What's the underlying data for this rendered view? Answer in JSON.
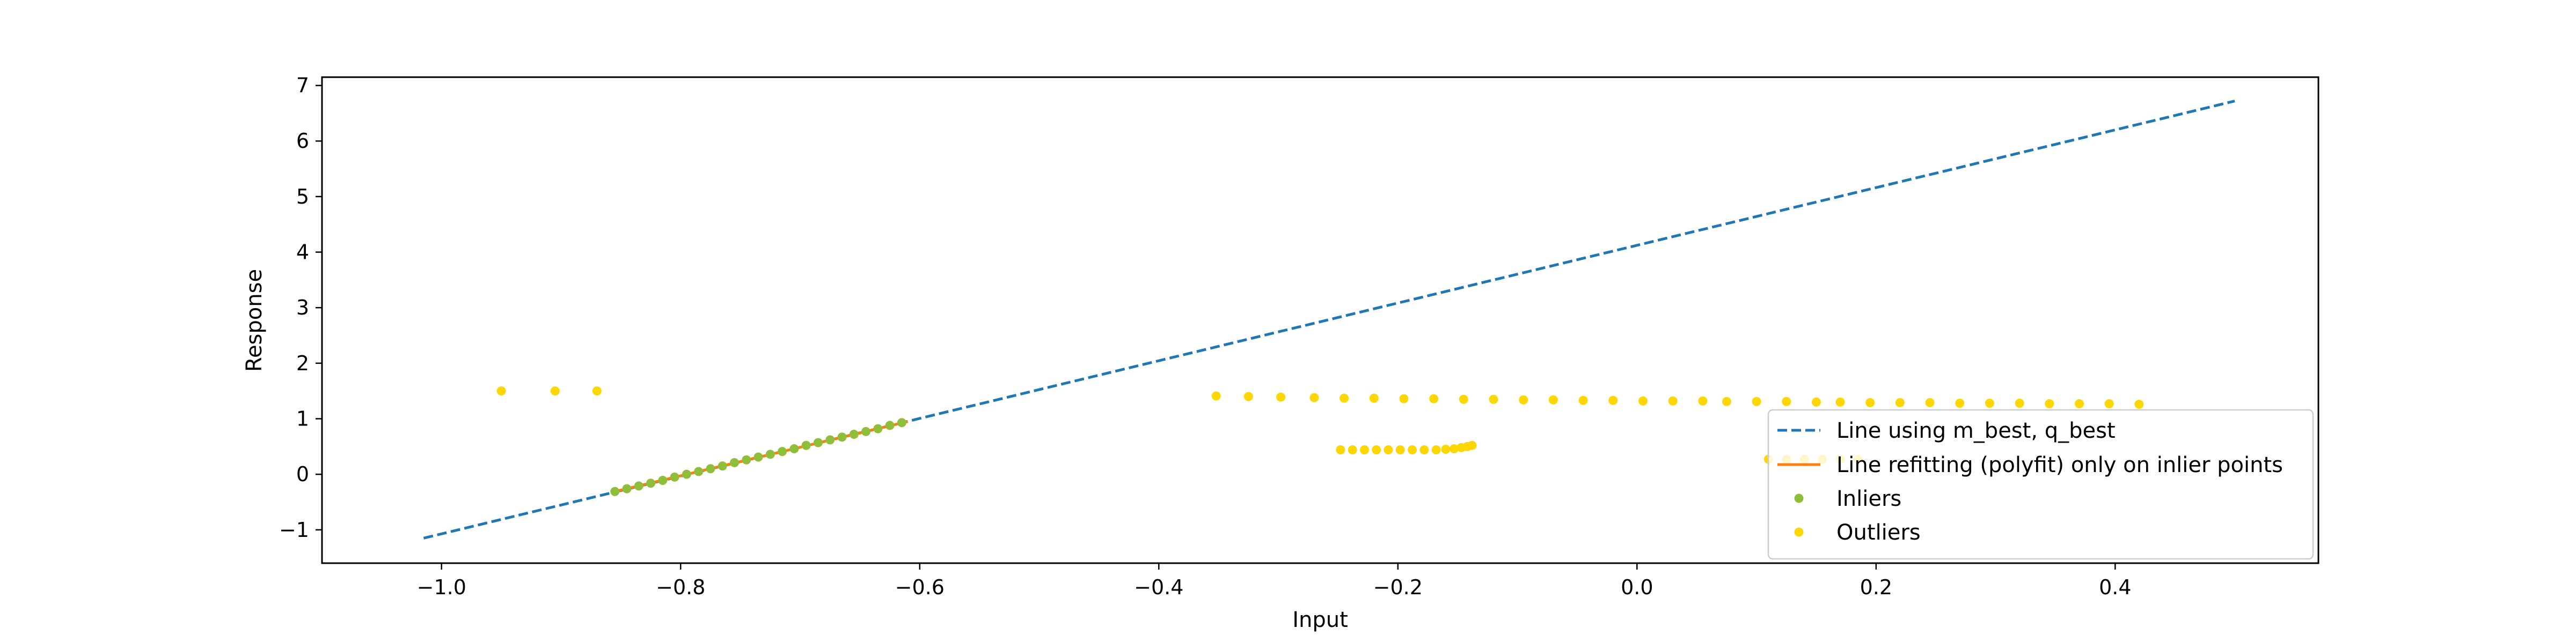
{
  "chart_data": {
    "type": "scatter",
    "xlabel": "Input",
    "ylabel": "Response",
    "xlim": [
      -1.1,
      0.57
    ],
    "ylim": [
      -1.6,
      7.15
    ],
    "xticks": [
      -1.0,
      -0.8,
      -0.6,
      -0.4,
      -0.2,
      0.0,
      0.2,
      0.4
    ],
    "xtick_labels": [
      "−1.0",
      "−0.8",
      "−0.6",
      "−0.4",
      "−0.2",
      "0.0",
      "0.2",
      "0.4"
    ],
    "yticks": [
      -1,
      0,
      1,
      2,
      3,
      4,
      5,
      6,
      7
    ],
    "ytick_labels": [
      "−1",
      "0",
      "1",
      "2",
      "3",
      "4",
      "5",
      "6",
      "7"
    ],
    "grid": false,
    "legend_position": "lower-right",
    "series": [
      {
        "name": "Line using m_best, q_best",
        "kind": "dashed-line",
        "color": "#1f77b4",
        "x": [
          -1.015,
          0.5
        ],
        "y": [
          -1.15,
          6.72
        ]
      },
      {
        "name": "Line refitting (polyfit) only on inlier points",
        "kind": "line",
        "color": "#ff7f0e",
        "x": [
          -0.855,
          -0.61
        ],
        "y": [
          -0.31,
          0.95
        ]
      },
      {
        "name": "Inliers",
        "kind": "scatter",
        "color": "#8fbf3a",
        "x": [
          -0.855,
          -0.845,
          -0.835,
          -0.825,
          -0.815,
          -0.805,
          -0.795,
          -0.785,
          -0.775,
          -0.765,
          -0.755,
          -0.745,
          -0.735,
          -0.725,
          -0.715,
          -0.705,
          -0.695,
          -0.685,
          -0.675,
          -0.665,
          -0.655,
          -0.645,
          -0.635,
          -0.625,
          -0.615
        ],
        "y": [
          -0.31,
          -0.26,
          -0.21,
          -0.16,
          -0.11,
          -0.05,
          0.0,
          0.05,
          0.1,
          0.15,
          0.21,
          0.26,
          0.31,
          0.36,
          0.41,
          0.46,
          0.52,
          0.57,
          0.62,
          0.67,
          0.72,
          0.77,
          0.82,
          0.88,
          0.93
        ]
      },
      {
        "name": "Outliers",
        "kind": "scatter",
        "color": "#ffd700",
        "x": [
          -0.95,
          -0.905,
          -0.87,
          -0.352,
          -0.325,
          -0.298,
          -0.27,
          -0.245,
          -0.22,
          -0.195,
          -0.17,
          -0.145,
          -0.12,
          -0.095,
          -0.07,
          -0.045,
          -0.02,
          0.005,
          0.03,
          0.055,
          0.075,
          0.1,
          0.125,
          0.15,
          0.17,
          0.195,
          0.22,
          0.245,
          0.27,
          0.295,
          0.32,
          0.345,
          0.37,
          0.395,
          0.42,
          -0.248,
          -0.238,
          -0.228,
          -0.218,
          -0.208,
          -0.198,
          -0.188,
          -0.178,
          -0.168,
          -0.16,
          -0.153,
          -0.147,
          -0.142,
          -0.138,
          0.11,
          0.125,
          0.14,
          0.155,
          0.17,
          0.185
        ],
        "y": [
          1.5,
          1.5,
          1.5,
          1.41,
          1.4,
          1.39,
          1.38,
          1.37,
          1.37,
          1.36,
          1.36,
          1.35,
          1.35,
          1.34,
          1.34,
          1.33,
          1.33,
          1.32,
          1.32,
          1.32,
          1.31,
          1.31,
          1.31,
          1.3,
          1.3,
          1.29,
          1.29,
          1.29,
          1.28,
          1.28,
          1.28,
          1.27,
          1.27,
          1.27,
          1.26,
          0.44,
          0.44,
          0.44,
          0.44,
          0.44,
          0.44,
          0.44,
          0.44,
          0.44,
          0.45,
          0.46,
          0.48,
          0.5,
          0.52,
          0.27,
          0.27,
          0.27,
          0.27,
          0.27,
          0.27
        ]
      }
    ]
  }
}
